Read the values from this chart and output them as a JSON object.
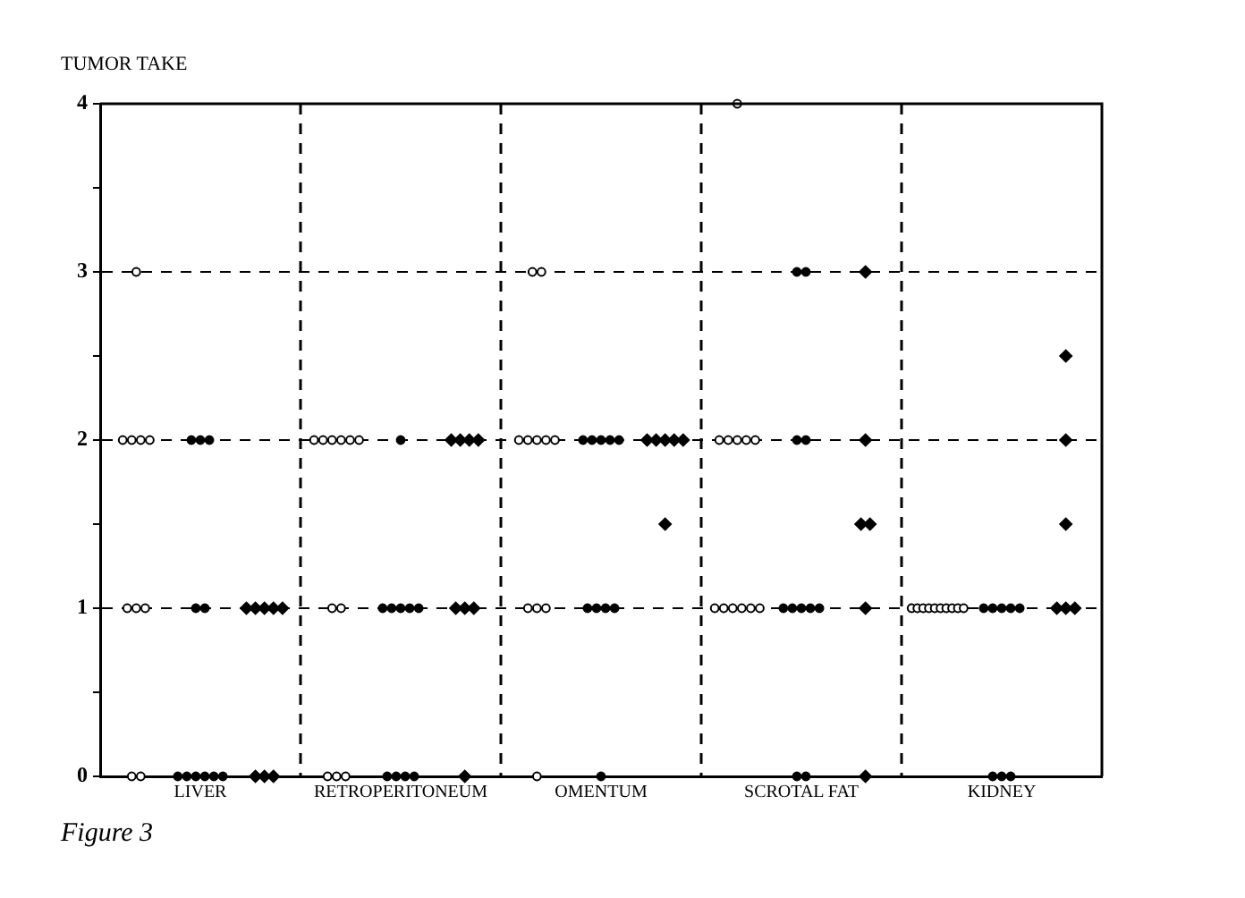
{
  "chart_data": {
    "type": "scatter",
    "ylabel": "TUMOR TAKE",
    "annotations": [
      "Figure 3"
    ],
    "categories": [
      "LIVER",
      "RETROPERITONEUM",
      "OMENTUM",
      "SCROTAL FAT",
      "KIDNEY"
    ],
    "ylim": [
      0,
      4
    ],
    "yticks": [
      0,
      {
        "value": 0.5,
        "label": null
      },
      1,
      {
        "value": 1.5,
        "label": null
      },
      2,
      {
        "value": 2.5,
        "label": null
      },
      3,
      {
        "value": 3.5,
        "label": null
      },
      4
    ],
    "grid": true,
    "series": [
      {
        "color": "#ffffff",
        "marker": "circle",
        "x": [
          "LIVER",
          "LIVER",
          "LIVER",
          "LIVER",
          "LIVER",
          "LIVER",
          "LIVER",
          "LIVER",
          "LIVER",
          "LIVER",
          "RETROPERITONEUM",
          "RETROPERITONEUM",
          "RETROPERITONEUM",
          "RETROPERITONEUM",
          "RETROPERITONEUM",
          "RETROPERITONEUM",
          "RETROPERITONEUM",
          "RETROPERITONEUM",
          "RETROPERITONEUM",
          "RETROPERITONEUM",
          "RETROPERITONEUM",
          "OMENTUM",
          "OMENTUM",
          "OMENTUM",
          "OMENTUM",
          "OMENTUM",
          "OMENTUM",
          "OMENTUM",
          "OMENTUM",
          "OMENTUM",
          "OMENTUM",
          "OMENTUM",
          "SCROTAL FAT",
          "SCROTAL FAT",
          "SCROTAL FAT",
          "SCROTAL FAT",
          "SCROTAL FAT",
          "SCROTAL FAT",
          "SCROTAL FAT",
          "SCROTAL FAT",
          "SCROTAL FAT",
          "SCROTAL FAT",
          "SCROTAL FAT",
          "SCROTAL FAT",
          "KIDNEY",
          "KIDNEY",
          "KIDNEY",
          "KIDNEY",
          "KIDNEY",
          "KIDNEY",
          "KIDNEY",
          "KIDNEY",
          "KIDNEY",
          "KIDNEY"
        ],
        "values": [
          3,
          2,
          2,
          2,
          2,
          1,
          1,
          1,
          0,
          0,
          2,
          2,
          2,
          2,
          2,
          2,
          1,
          1,
          0,
          0,
          0,
          3,
          3,
          2,
          2,
          2,
          2,
          2,
          1,
          1,
          1,
          0,
          4,
          2,
          2,
          2,
          2,
          2,
          1,
          1,
          1,
          1,
          1,
          1,
          1,
          1,
          1,
          1,
          1,
          1,
          1,
          1,
          1,
          1
        ]
      },
      {
        "color": "#000000",
        "marker": "circle",
        "x": [
          "LIVER",
          "LIVER",
          "LIVER",
          "LIVER",
          "LIVER",
          "LIVER",
          "LIVER",
          "LIVER",
          "LIVER",
          "LIVER",
          "LIVER",
          "RETROPERITONEUM",
          "RETROPERITONEUM",
          "RETROPERITONEUM",
          "RETROPERITONEUM",
          "RETROPERITONEUM",
          "RETROPERITONEUM",
          "RETROPERITONEUM",
          "RETROPERITONEUM",
          "RETROPERITONEUM",
          "RETROPERITONEUM",
          "OMENTUM",
          "OMENTUM",
          "OMENTUM",
          "OMENTUM",
          "OMENTUM",
          "OMENTUM",
          "OMENTUM",
          "OMENTUM",
          "OMENTUM",
          "OMENTUM",
          "SCROTAL FAT",
          "SCROTAL FAT",
          "SCROTAL FAT",
          "SCROTAL FAT",
          "SCROTAL FAT",
          "SCROTAL FAT",
          "SCROTAL FAT",
          "SCROTAL FAT",
          "SCROTAL FAT",
          "SCROTAL FAT",
          "SCROTAL FAT",
          "KIDNEY",
          "KIDNEY",
          "KIDNEY",
          "KIDNEY",
          "KIDNEY",
          "KIDNEY",
          "KIDNEY",
          "KIDNEY"
        ],
        "values": [
          2,
          2,
          2,
          1,
          1,
          0,
          0,
          0,
          0,
          0,
          0,
          2,
          1,
          1,
          1,
          1,
          1,
          0,
          0,
          0,
          0,
          2,
          2,
          2,
          2,
          2,
          1,
          1,
          1,
          1,
          0,
          3,
          3,
          2,
          2,
          1,
          1,
          1,
          1,
          1,
          0,
          0,
          1,
          1,
          1,
          1,
          1,
          0,
          0,
          0
        ]
      },
      {
        "color": "#000000",
        "marker": "diamond",
        "x": [
          "LIVER",
          "LIVER",
          "LIVER",
          "LIVER",
          "LIVER",
          "LIVER",
          "LIVER",
          "LIVER",
          "RETROPERITONEUM",
          "RETROPERITONEUM",
          "RETROPERITONEUM",
          "RETROPERITONEUM",
          "RETROPERITONEUM",
          "RETROPERITONEUM",
          "RETROPERITONEUM",
          "RETROPERITONEUM",
          "OMENTUM",
          "OMENTUM",
          "OMENTUM",
          "OMENTUM",
          "OMENTUM",
          "OMENTUM",
          "SCROTAL FAT",
          "SCROTAL FAT",
          "SCROTAL FAT",
          "SCROTAL FAT",
          "SCROTAL FAT",
          "SCROTAL FAT",
          "KIDNEY",
          "KIDNEY",
          "KIDNEY",
          "KIDNEY",
          "KIDNEY",
          "KIDNEY"
        ],
        "values": [
          1,
          1,
          1,
          1,
          1,
          0,
          0,
          0,
          2,
          2,
          2,
          2,
          1,
          1,
          1,
          0,
          2,
          2,
          2,
          2,
          2,
          1.5,
          3,
          2,
          1.5,
          1.5,
          1,
          0,
          2.5,
          2,
          1.5,
          1,
          1,
          1
        ]
      }
    ]
  }
}
